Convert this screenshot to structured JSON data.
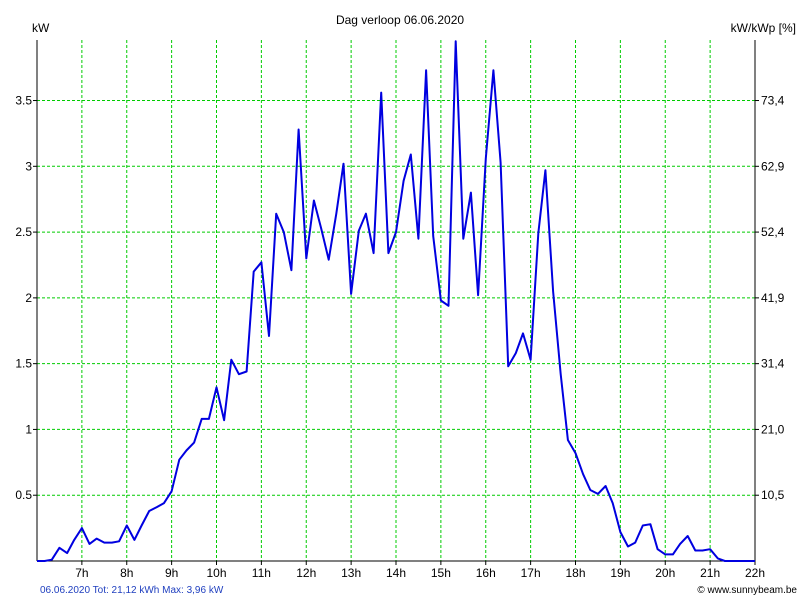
{
  "chart_data": {
    "type": "line",
    "title": "Dag  verloop 06.06.2020",
    "ylabel_left": "kW",
    "ylabel_right": "kW/kWp [%]",
    "xlim": [
      6,
      22
    ],
    "ylim": [
      0,
      3.96
    ],
    "x_ticks": [
      7,
      8,
      9,
      10,
      11,
      12,
      13,
      14,
      15,
      16,
      17,
      18,
      19,
      20,
      21,
      22
    ],
    "x_tick_labels": [
      "7h",
      "8h",
      "9h",
      "10h",
      "11h",
      "12h",
      "13h",
      "14h",
      "15h",
      "16h",
      "17h",
      "18h",
      "19h",
      "20h",
      "21h",
      "22h"
    ],
    "y_left_ticks": [
      0.5,
      1,
      1.5,
      2,
      2.5,
      3,
      3.5
    ],
    "y_left_tick_labels": [
      "0.5",
      "1",
      "1.5",
      "2",
      "2.5",
      "3",
      "3.5"
    ],
    "y_right_tick_labels": [
      "10,5",
      "21,0",
      "31,4",
      "41,9",
      "52,4",
      "62,9",
      "73,4"
    ],
    "grid": true,
    "series": [
      {
        "x": [
          6.0,
          6.17,
          6.33,
          6.5,
          6.67,
          6.83,
          7.0,
          7.17,
          7.33,
          7.5,
          7.67,
          7.83,
          8.0,
          8.17,
          8.33,
          8.5,
          8.67,
          8.83,
          9.0,
          9.17,
          9.33,
          9.5,
          9.67,
          9.83,
          10.0,
          10.17,
          10.33,
          10.5,
          10.67,
          10.83,
          11.0,
          11.17,
          11.33,
          11.5,
          11.67,
          11.83,
          12.0,
          12.17,
          12.33,
          12.5,
          12.67,
          12.83,
          13.0,
          13.17,
          13.33,
          13.5,
          13.67,
          13.83,
          14.0,
          14.17,
          14.33,
          14.5,
          14.67,
          14.83,
          15.0,
          15.17,
          15.33,
          15.5,
          15.67,
          15.83,
          16.0,
          16.17,
          16.33,
          16.5,
          16.67,
          16.83,
          17.0,
          17.17,
          17.33,
          17.5,
          17.67,
          17.83,
          18.0,
          18.17,
          18.33,
          18.5,
          18.67,
          18.83,
          19.0,
          19.17,
          19.33,
          19.5,
          19.67,
          19.83,
          20.0,
          20.17,
          20.33,
          20.5,
          20.67,
          20.83,
          21.0,
          21.17,
          21.33,
          21.5,
          21.67,
          21.83,
          22.0
        ],
        "y": [
          0.0,
          0.0,
          0.01,
          0.1,
          0.06,
          0.16,
          0.25,
          0.13,
          0.17,
          0.14,
          0.14,
          0.15,
          0.27,
          0.16,
          0.27,
          0.38,
          0.41,
          0.44,
          0.53,
          0.77,
          0.84,
          0.9,
          1.08,
          1.08,
          1.32,
          1.07,
          1.53,
          1.42,
          1.44,
          2.2,
          2.27,
          1.71,
          2.64,
          2.5,
          2.21,
          3.28,
          2.3,
          2.74,
          2.53,
          2.29,
          2.64,
          3.02,
          2.03,
          2.51,
          2.64,
          2.34,
          3.56,
          2.34,
          2.5,
          2.89,
          3.09,
          2.45,
          3.73,
          2.47,
          1.98,
          1.94,
          3.95,
          2.45,
          2.8,
          2.02,
          3.06,
          3.73,
          3.03,
          1.48,
          1.58,
          1.73,
          1.53,
          2.49,
          2.97,
          2.05,
          1.42,
          0.92,
          0.82,
          0.66,
          0.54,
          0.51,
          0.57,
          0.44,
          0.22,
          0.11,
          0.14,
          0.27,
          0.28,
          0.09,
          0.05,
          0.05,
          0.13,
          0.19,
          0.08,
          0.08,
          0.09,
          0.02,
          0.0,
          0.0,
          0.0,
          0.0,
          0.0
        ],
        "color": "#0000e0"
      }
    ],
    "footer_left": "06.06.2020 Tot: 21,12 kWh Max: 3,96 kW",
    "footer_right": "© www.sunnybeam.be",
    "colors": {
      "grid": "#00cc00",
      "axes": "#000000",
      "footer_left_text": "#1f3fbf"
    }
  }
}
